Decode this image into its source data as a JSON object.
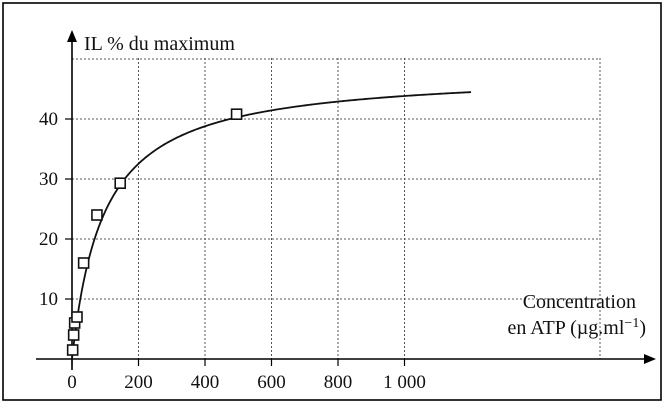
{
  "chart_data": {
    "type": "scatter",
    "title": "",
    "ylabel": "IL % du maximum",
    "xlabel_line1": "Concentration",
    "xlabel_line2": "en ATP (µg.ml",
    "xlabel_sup": "−1",
    "xlabel_close": ")",
    "x_ticks": [
      0,
      200,
      400,
      600,
      800,
      1000
    ],
    "x_tick_labels": [
      "0",
      "200",
      "400",
      "600",
      "800",
      "1 000"
    ],
    "y_ticks": [
      10,
      20,
      30,
      40
    ],
    "y_tick_labels": [
      "10",
      "20",
      "30",
      "40"
    ],
    "xlim": [
      -20,
      1250
    ],
    "ylim": [
      0,
      50
    ],
    "grid": true,
    "points": [
      {
        "x": 2,
        "y": 1.5
      },
      {
        "x": 5,
        "y": 4
      },
      {
        "x": 8,
        "y": 6
      },
      {
        "x": 15,
        "y": 7
      },
      {
        "x": 35,
        "y": 16
      },
      {
        "x": 75,
        "y": 24
      },
      {
        "x": 145,
        "y": 29.3
      },
      {
        "x": 495,
        "y": 40.8
      }
    ],
    "fit_curve": {
      "model": "michaelis-menten",
      "vmax": 48,
      "km": 95,
      "x_range": [
        0,
        1200
      ]
    }
  }
}
